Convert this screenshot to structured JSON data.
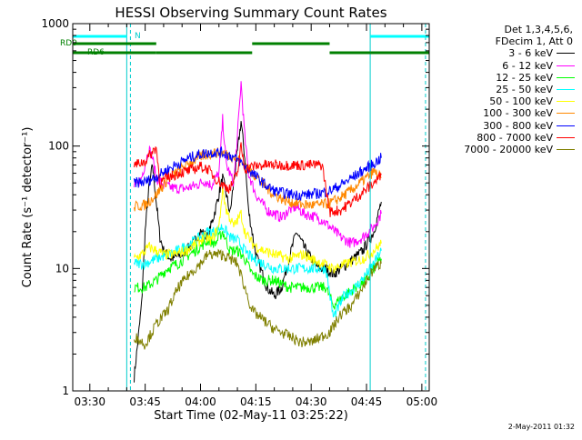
{
  "chart_data": {
    "type": "line",
    "title": "HESSI Observing Summary Count Rates",
    "xlabel": "Start Time (02-May-11 03:25:22)",
    "ylabel": "Count Rate (s⁻¹ detector⁻¹)",
    "yscale": "log",
    "ylim": [
      1,
      1000
    ],
    "xlim": [
      "03:25:22",
      "05:02:00"
    ],
    "x_ticks": [
      "03:30",
      "03:45",
      "04:00",
      "04:15",
      "04:30",
      "04:45",
      "05:00"
    ],
    "y_ticks": [
      "1",
      "10",
      "100",
      "1000"
    ],
    "legend": {
      "header": [
        "Det 1,3,4,5,6,",
        "FDecim 1, Att 0"
      ],
      "placement": "right"
    },
    "series": [
      {
        "name": "3 - 6 keV",
        "color": "#000000",
        "points": [
          [
            "03:42",
            1.3
          ],
          [
            "03:43",
            2.5
          ],
          [
            "03:44",
            5
          ],
          [
            "03:45",
            20
          ],
          [
            "03:46",
            45
          ],
          [
            "03:47",
            70
          ],
          [
            "03:48",
            35
          ],
          [
            "03:49",
            18
          ],
          [
            "03:50",
            14
          ],
          [
            "03:52",
            12
          ],
          [
            "03:55",
            13
          ],
          [
            "03:58",
            16
          ],
          [
            "04:00",
            20
          ],
          [
            "04:02",
            18
          ],
          [
            "04:04",
            30
          ],
          [
            "04:06",
            55
          ],
          [
            "04:07",
            40
          ],
          [
            "04:08",
            28
          ],
          [
            "04:10",
            90
          ],
          [
            "04:11",
            160
          ],
          [
            "04:12",
            80
          ],
          [
            "04:13",
            30
          ],
          [
            "04:15",
            13
          ],
          [
            "04:18",
            7
          ],
          [
            "04:20",
            6
          ],
          [
            "04:22",
            7
          ],
          [
            "04:24",
            12
          ],
          [
            "04:26",
            20
          ],
          [
            "04:28",
            15
          ],
          [
            "04:30",
            12
          ],
          [
            "04:32",
            10
          ],
          [
            "04:34",
            10
          ],
          [
            "04:36",
            9
          ],
          [
            "04:40",
            11
          ],
          [
            "04:44",
            14
          ],
          [
            "04:47",
            20
          ],
          [
            "04:49",
            35
          ]
        ]
      },
      {
        "name": "6 - 12 keV",
        "color": "#ff00ff",
        "points": [
          [
            "03:42",
            45
          ],
          [
            "03:44",
            55
          ],
          [
            "03:46",
            95
          ],
          [
            "03:47",
            80
          ],
          [
            "03:48",
            55
          ],
          [
            "03:50",
            48
          ],
          [
            "03:53",
            45
          ],
          [
            "03:56",
            45
          ],
          [
            "03:59",
            48
          ],
          [
            "04:01",
            52
          ],
          [
            "04:03",
            48
          ],
          [
            "04:05",
            60
          ],
          [
            "04:06",
            165
          ],
          [
            "04:07",
            70
          ],
          [
            "04:09",
            50
          ],
          [
            "04:10",
            120
          ],
          [
            "04:11",
            330
          ],
          [
            "04:12",
            120
          ],
          [
            "04:13",
            60
          ],
          [
            "04:15",
            40
          ],
          [
            "04:18",
            30
          ],
          [
            "04:20",
            28
          ],
          [
            "04:22",
            26
          ],
          [
            "04:24",
            30
          ],
          [
            "04:26",
            32
          ],
          [
            "04:28",
            28
          ],
          [
            "04:30",
            27
          ],
          [
            "04:33",
            25
          ],
          [
            "04:35",
            22
          ],
          [
            "04:38",
            18
          ],
          [
            "04:41",
            16
          ],
          [
            "04:44",
            18
          ],
          [
            "04:47",
            22
          ],
          [
            "04:49",
            28
          ]
        ]
      },
      {
        "name": "12 - 25 keV",
        "color": "#00ff00",
        "points": [
          [
            "03:42",
            7
          ],
          [
            "03:45",
            7
          ],
          [
            "03:48",
            8
          ],
          [
            "03:51",
            10
          ],
          [
            "03:54",
            11
          ],
          [
            "03:57",
            13
          ],
          [
            "04:00",
            15
          ],
          [
            "04:02",
            17
          ],
          [
            "04:04",
            16
          ],
          [
            "04:06",
            20
          ],
          [
            "04:08",
            14
          ],
          [
            "04:10",
            14
          ],
          [
            "04:12",
            12
          ],
          [
            "04:14",
            9
          ],
          [
            "04:17",
            8
          ],
          [
            "04:20",
            8
          ],
          [
            "04:24",
            7
          ],
          [
            "04:28",
            7
          ],
          [
            "04:31",
            7
          ],
          [
            "04:34",
            7
          ],
          [
            "04:36",
            5
          ],
          [
            "04:39",
            6
          ],
          [
            "04:42",
            7
          ],
          [
            "04:45",
            8
          ],
          [
            "04:47",
            10
          ],
          [
            "04:49",
            12
          ]
        ]
      },
      {
        "name": "25 - 50 keV",
        "color": "#00ffff",
        "points": [
          [
            "03:42",
            11
          ],
          [
            "03:45",
            11
          ],
          [
            "03:48",
            12
          ],
          [
            "03:51",
            13
          ],
          [
            "03:54",
            14
          ],
          [
            "03:57",
            16
          ],
          [
            "04:00",
            18
          ],
          [
            "04:02",
            20
          ],
          [
            "04:04",
            20
          ],
          [
            "04:06",
            22
          ],
          [
            "04:08",
            18
          ],
          [
            "04:10",
            17
          ],
          [
            "04:12",
            14
          ],
          [
            "04:14",
            12
          ],
          [
            "04:17",
            11
          ],
          [
            "04:20",
            10
          ],
          [
            "04:24",
            10
          ],
          [
            "04:28",
            10
          ],
          [
            "04:31",
            10
          ],
          [
            "04:34",
            10
          ],
          [
            "04:36",
            4
          ],
          [
            "04:39",
            6
          ],
          [
            "04:42",
            7
          ],
          [
            "04:45",
            9
          ],
          [
            "04:47",
            11
          ],
          [
            "04:49",
            14
          ]
        ]
      },
      {
        "name": "50 - 100 keV",
        "color": "#ffff00",
        "points": [
          [
            "03:42",
            12
          ],
          [
            "03:44",
            13
          ],
          [
            "03:46",
            15
          ],
          [
            "03:48",
            14
          ],
          [
            "03:50",
            13
          ],
          [
            "03:53",
            13
          ],
          [
            "03:56",
            14
          ],
          [
            "03:59",
            16
          ],
          [
            "04:01",
            18
          ],
          [
            "04:03",
            17
          ],
          [
            "04:05",
            22
          ],
          [
            "04:06",
            45
          ],
          [
            "04:07",
            30
          ],
          [
            "04:09",
            22
          ],
          [
            "04:11",
            28
          ],
          [
            "04:12",
            20
          ],
          [
            "04:14",
            16
          ],
          [
            "04:17",
            14
          ],
          [
            "04:20",
            13
          ],
          [
            "04:24",
            12
          ],
          [
            "04:28",
            13
          ],
          [
            "04:30",
            12
          ],
          [
            "04:33",
            11
          ],
          [
            "04:36",
            10
          ],
          [
            "04:40",
            11
          ],
          [
            "04:44",
            12
          ],
          [
            "04:47",
            14
          ],
          [
            "04:49",
            16
          ]
        ]
      },
      {
        "name": "100 - 300 keV",
        "color": "#ff8800",
        "points": [
          [
            "03:42",
            32
          ],
          [
            "03:45",
            33
          ],
          [
            "03:48",
            40
          ],
          [
            "03:51",
            53
          ],
          [
            "03:54",
            63
          ],
          [
            "03:57",
            73
          ],
          [
            "04:00",
            82
          ],
          [
            "04:02",
            86
          ],
          [
            "04:04",
            88
          ],
          [
            "04:06",
            88
          ],
          [
            "04:08",
            84
          ],
          [
            "04:10",
            78
          ],
          [
            "04:12",
            70
          ],
          [
            "04:14",
            61
          ],
          [
            "04:16",
            53
          ],
          [
            "04:18",
            45
          ],
          [
            "04:20",
            40
          ],
          [
            "04:23",
            36
          ],
          [
            "04:26",
            34
          ],
          [
            "04:29",
            33
          ],
          [
            "04:32",
            33
          ],
          [
            "04:35",
            34
          ],
          [
            "04:38",
            38
          ],
          [
            "04:41",
            44
          ],
          [
            "04:44",
            52
          ],
          [
            "04:47",
            62
          ],
          [
            "04:49",
            55
          ]
        ]
      },
      {
        "name": "300 - 800 keV",
        "color": "#0000ff",
        "points": [
          [
            "03:42",
            50
          ],
          [
            "03:45",
            51
          ],
          [
            "03:48",
            56
          ],
          [
            "03:51",
            64
          ],
          [
            "03:54",
            72
          ],
          [
            "03:57",
            80
          ],
          [
            "04:00",
            86
          ],
          [
            "04:02",
            88
          ],
          [
            "04:04",
            89
          ],
          [
            "04:06",
            88
          ],
          [
            "04:08",
            84
          ],
          [
            "04:10",
            77
          ],
          [
            "04:12",
            69
          ],
          [
            "04:14",
            60
          ],
          [
            "04:16",
            53
          ],
          [
            "04:18",
            47
          ],
          [
            "04:20",
            43
          ],
          [
            "04:23",
            41
          ],
          [
            "04:26",
            40
          ],
          [
            "04:29",
            40
          ],
          [
            "04:32",
            41
          ],
          [
            "04:35",
            43
          ],
          [
            "04:38",
            48
          ],
          [
            "04:41",
            55
          ],
          [
            "04:44",
            63
          ],
          [
            "04:47",
            72
          ],
          [
            "04:49",
            80
          ]
        ]
      },
      {
        "name": "800 - 7000 keV",
        "color": "#ff0000",
        "points": [
          [
            "03:42",
            70
          ],
          [
            "03:45",
            75
          ],
          [
            "03:47",
            90
          ],
          [
            "03:48",
            98
          ],
          [
            "03:49",
            50
          ],
          [
            "03:51",
            55
          ],
          [
            "03:54",
            60
          ],
          [
            "03:57",
            63
          ],
          [
            "04:00",
            68
          ],
          [
            "04:02",
            65
          ],
          [
            "04:04",
            55
          ],
          [
            "04:06",
            48
          ],
          [
            "04:08",
            45
          ],
          [
            "04:10",
            60
          ],
          [
            "04:11",
            100
          ],
          [
            "04:12",
            65
          ],
          [
            "04:14",
            68
          ],
          [
            "04:17",
            70
          ],
          [
            "04:20",
            70
          ],
          [
            "04:24",
            70
          ],
          [
            "04:28",
            70
          ],
          [
            "04:30",
            70
          ],
          [
            "04:33",
            70
          ],
          [
            "04:35",
            29
          ],
          [
            "04:38",
            30
          ],
          [
            "04:41",
            35
          ],
          [
            "04:44",
            42
          ],
          [
            "04:47",
            50
          ],
          [
            "04:49",
            58
          ]
        ]
      },
      {
        "name": "7000 - 20000 keV",
        "color": "#808000",
        "points": [
          [
            "03:42",
            2.8
          ],
          [
            "03:45",
            2.4
          ],
          [
            "03:48",
            3.5
          ],
          [
            "03:51",
            4.5
          ],
          [
            "03:54",
            7
          ],
          [
            "03:57",
            9
          ],
          [
            "04:00",
            11
          ],
          [
            "04:02",
            13
          ],
          [
            "04:04",
            13
          ],
          [
            "04:06",
            13
          ],
          [
            "04:08",
            12
          ],
          [
            "04:10",
            11
          ],
          [
            "04:12",
            7
          ],
          [
            "04:14",
            4.5
          ],
          [
            "04:17",
            3.8
          ],
          [
            "04:20",
            3.2
          ],
          [
            "04:24",
            2.8
          ],
          [
            "04:27",
            2.5
          ],
          [
            "04:30",
            2.5
          ],
          [
            "04:33",
            2.8
          ],
          [
            "04:35",
            3
          ],
          [
            "04:38",
            4.2
          ],
          [
            "04:41",
            5
          ],
          [
            "04:44",
            7
          ],
          [
            "04:47",
            10
          ],
          [
            "04:49",
            11
          ]
        ]
      }
    ],
    "annotations": [
      {
        "label": "RD0",
        "color": "#008000"
      },
      {
        "label": "RD6",
        "color": "#008000"
      },
      {
        "label": "N",
        "color": "#00cccc"
      }
    ],
    "flag_bars": {
      "cyan_top": [
        [
          "03:25:22",
          "03:40"
        ],
        [
          "04:46",
          "05:02"
        ]
      ],
      "green_rd0": [
        [
          "03:25:22",
          "03:48"
        ],
        [
          "04:14",
          "04:35"
        ]
      ],
      "green_rd6": [
        [
          "03:25:22",
          "03:48"
        ],
        [
          "03:48",
          "04:14"
        ],
        [
          "04:35",
          "04:46"
        ],
        [
          "04:46",
          "05:02"
        ]
      ]
    },
    "vlines": [
      {
        "time": "03:40",
        "style": "solid",
        "color": "#00cccc"
      },
      {
        "time": "03:41",
        "style": "dashed",
        "color": "#00cccc"
      },
      {
        "time": "04:46",
        "style": "solid",
        "color": "#00cccc"
      },
      {
        "time": "05:01",
        "style": "dashed",
        "color": "#00cccc"
      }
    ],
    "grid": false
  },
  "footer": {
    "date": "2-May-2011 01:32"
  }
}
